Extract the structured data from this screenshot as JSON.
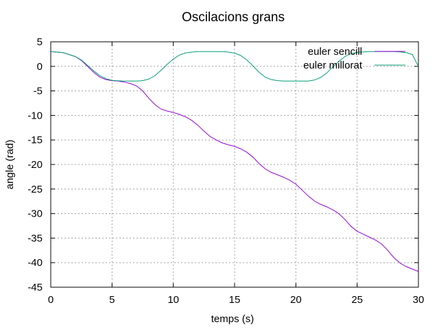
{
  "chart_data": {
    "type": "line",
    "title": "Oscilacions grans",
    "xlabel": "temps (s)",
    "ylabel": "angle (rad)",
    "xlim": [
      0,
      30
    ],
    "ylim": [
      -45,
      5
    ],
    "xticks": [
      0,
      5,
      10,
      15,
      20,
      25,
      30
    ],
    "yticks": [
      5,
      0,
      -5,
      -10,
      -15,
      -20,
      -25,
      -30,
      -35,
      -40,
      -45
    ],
    "grid": true,
    "legend_position": "top-right",
    "series": [
      {
        "name": "euler sencill",
        "color": "#9400d3",
        "x": [
          0,
          1,
          2,
          2.5,
          3,
          3.5,
          4,
          4.5,
          5,
          5.5,
          6,
          6.5,
          7,
          7.5,
          8,
          8.5,
          9,
          9.5,
          10,
          10.5,
          11,
          11.5,
          12,
          12.5,
          13,
          13.5,
          14,
          14.5,
          15,
          15.5,
          16,
          16.5,
          17,
          17.5,
          18,
          18.5,
          19,
          19.5,
          20,
          20.5,
          21,
          21.5,
          22,
          22.5,
          23,
          23.5,
          24,
          24.5,
          25,
          25.5,
          26,
          26.5,
          27,
          27.5,
          28,
          28.5,
          29,
          29.5,
          30
        ],
        "values": [
          3,
          2.8,
          2,
          1.2,
          0,
          -1.2,
          -2.2,
          -2.7,
          -2.9,
          -3.0,
          -3.2,
          -3.5,
          -4.0,
          -5.0,
          -6.5,
          -7.8,
          -8.7,
          -9.1,
          -9.4,
          -9.8,
          -10.3,
          -11.0,
          -12.0,
          -13.2,
          -14.3,
          -15.0,
          -15.6,
          -16.0,
          -16.3,
          -16.8,
          -17.5,
          -18.5,
          -19.8,
          -20.9,
          -21.6,
          -22.1,
          -22.6,
          -23.2,
          -24.0,
          -25.2,
          -26.4,
          -27.4,
          -28.1,
          -28.6,
          -29.2,
          -30.0,
          -31.2,
          -32.6,
          -33.6,
          -34.2,
          -34.8,
          -35.4,
          -36.2,
          -37.5,
          -39.0,
          -40.1,
          -40.8,
          -41.3,
          -41.8
        ]
      },
      {
        "name": "euler millorat",
        "color": "#009e73",
        "x": [
          0,
          1,
          2,
          2.5,
          3,
          3.5,
          4,
          4.5,
          5,
          5.5,
          6,
          6.5,
          7,
          7.5,
          8,
          8.5,
          9,
          9.5,
          10,
          10.5,
          11,
          11.5,
          12,
          12.5,
          13,
          13.5,
          14,
          14.5,
          15,
          15.5,
          16,
          16.5,
          17,
          17.5,
          18,
          18.5,
          19,
          19.5,
          20,
          20.5,
          21,
          21.5,
          22,
          22.5,
          23,
          23.5,
          24,
          24.5,
          25,
          25.5,
          26,
          26.5,
          27,
          27.5,
          28,
          28.5,
          29,
          29.5,
          30
        ],
        "values": [
          3,
          2.8,
          2.0,
          1.3,
          0.2,
          -0.9,
          -1.9,
          -2.5,
          -2.85,
          -2.95,
          -3.0,
          -3.0,
          -3.0,
          -2.9,
          -2.6,
          -1.9,
          -0.8,
          0.4,
          1.5,
          2.3,
          2.75,
          2.9,
          3.0,
          3.0,
          3.0,
          3.0,
          3.0,
          2.9,
          2.7,
          2.2,
          1.3,
          0.1,
          -1.2,
          -2.2,
          -2.7,
          -2.9,
          -3.0,
          -3.0,
          -3.0,
          -3.0,
          -3.0,
          -2.8,
          -2.3,
          -1.4,
          -0.2,
          1.0,
          2.0,
          2.6,
          2.85,
          2.95,
          3.0,
          3.0,
          3.0,
          3.0,
          3.0,
          2.95,
          2.8,
          2.4,
          0.0
        ]
      }
    ]
  }
}
